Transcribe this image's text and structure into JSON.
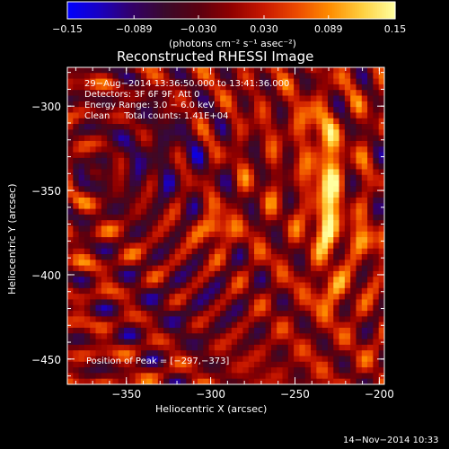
{
  "chart_data": {
    "type": "heatmap",
    "title": "Reconstructed RHESSI Image",
    "xlabel": "Heliocentric X (arcsec)",
    "ylabel": "Heliocentric Y (arcsec)",
    "xlim": [
      -385,
      -197
    ],
    "ylim": [
      -465,
      -277
    ],
    "xticks": [
      -350,
      -300,
      -250,
      -200
    ],
    "xtick_labels": [
      "−350",
      "−300",
      "−250",
      "−200"
    ],
    "yticks": [
      -300,
      -350,
      -400,
      -450
    ],
    "ytick_labels": [
      "−300",
      "−350",
      "−400",
      "−450"
    ],
    "colorbar": {
      "range": [
        -0.15,
        0.15
      ],
      "ticks": [
        -0.15,
        -0.089,
        -0.03,
        0.03,
        0.089,
        0.15
      ],
      "tick_labels": [
        "−0.15",
        "−0.089",
        "−0.030",
        "0.030",
        "0.089",
        "0.15"
      ],
      "unit_label": "(photons cm⁻² s⁻¹ asec⁻²)"
    },
    "annotations": [
      "29−Aug−2014 13:36:50.000 to 13:41:36.000",
      "Detectors: 3F 6F 9F, Att 0",
      "Energy Range: 3.0 − 6.0 keV",
      "Clean     Total counts: 1.41E+04"
    ],
    "peak_label": "Position of Peak = [−297,−373]",
    "peak": [
      -297,
      -373
    ],
    "sources": [
      {
        "x": -297,
        "y": -373,
        "sx": 5,
        "sy": 5,
        "amp": 0.15
      },
      {
        "x": -231,
        "y": -340,
        "sx": 6,
        "sy": 16,
        "amp": 0.13
      },
      {
        "x": -231,
        "y": -372,
        "sx": 6,
        "sy": 10,
        "amp": 0.12
      },
      {
        "x": -209,
        "y": -380,
        "sx": 5,
        "sy": 6,
        "amp": 0.1
      },
      {
        "x": -229,
        "y": -410,
        "sx": 6,
        "sy": 8,
        "amp": 0.09
      },
      {
        "x": -240,
        "y": -310,
        "sx": 7,
        "sy": 8,
        "amp": 0.07
      }
    ],
    "colors": {
      "cmap": [
        "#0000ff",
        "#1a00c0",
        "#330066",
        "#3a0a2a",
        "#5a0010",
        "#900000",
        "#c81800",
        "#ec4a00",
        "#ff8c00",
        "#ffd040",
        "#ffffa0"
      ]
    }
  },
  "footer": {
    "date": "14−Nov−2014 10:33"
  }
}
